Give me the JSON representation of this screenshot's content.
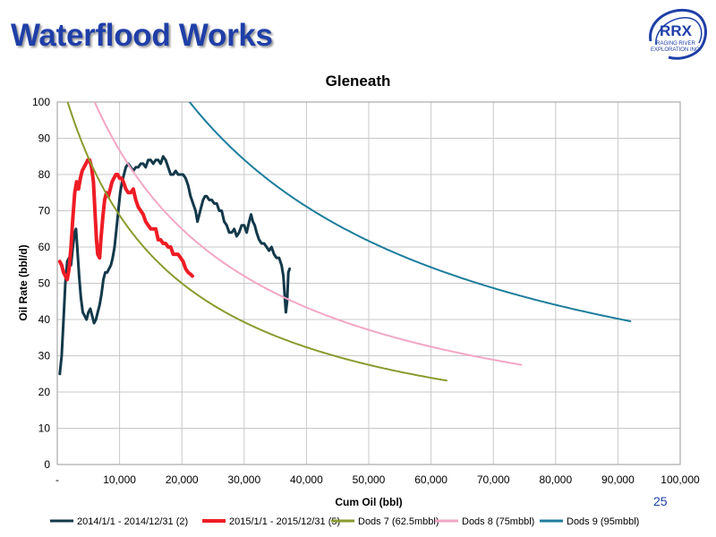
{
  "slide": {
    "title": "Waterflood Works",
    "page_number": "25"
  },
  "logo": {
    "name": "RRX",
    "subtitle_line1": "RAGING RIVER",
    "subtitle_line2": "EXPLORATION INC."
  },
  "colors": {
    "title": "#1f3fa8",
    "grid": "#c8c8c8",
    "logo": "#1f3fa8"
  },
  "chart_data": {
    "type": "line",
    "title": "Gleneath",
    "xlabel": "Cum Oil (bbl)",
    "ylabel": "Oil Rate (bbl/d)",
    "xlim": [
      0,
      100000
    ],
    "ylim": [
      0,
      100
    ],
    "xticks": [
      0,
      10000,
      20000,
      30000,
      40000,
      50000,
      60000,
      70000,
      80000,
      90000,
      100000
    ],
    "xtick_labels": [
      "-",
      "10,000",
      "20,000",
      "30,000",
      "40,000",
      "50,000",
      "60,000",
      "70,000",
      "80,000",
      "90,000",
      "100,000"
    ],
    "yticks": [
      0,
      10,
      20,
      30,
      40,
      50,
      60,
      70,
      80,
      90,
      100
    ],
    "ytick_labels": [
      "0",
      "10",
      "20",
      "30",
      "40",
      "50",
      "60",
      "70",
      "80",
      "90",
      "100"
    ],
    "grid": true,
    "legend_position": "bottom",
    "series": [
      {
        "name": "2014/1/1 - 2014/12/31 (2)",
        "color": "#13394a",
        "width": 3,
        "points": [
          [
            400,
            25
          ],
          [
            700,
            30
          ],
          [
            1000,
            40
          ],
          [
            1300,
            50
          ],
          [
            1600,
            56
          ],
          [
            1900,
            57
          ],
          [
            2200,
            55
          ],
          [
            2500,
            60
          ],
          [
            2800,
            64
          ],
          [
            3000,
            65
          ],
          [
            3200,
            60
          ],
          [
            3500,
            52
          ],
          [
            3800,
            46
          ],
          [
            4100,
            42
          ],
          [
            4400,
            41
          ],
          [
            4700,
            40
          ],
          [
            5000,
            42
          ],
          [
            5300,
            43
          ],
          [
            5600,
            41
          ],
          [
            5900,
            39
          ],
          [
            6200,
            40
          ],
          [
            6500,
            42
          ],
          [
            6800,
            44
          ],
          [
            7100,
            47
          ],
          [
            7400,
            51
          ],
          [
            7700,
            53
          ],
          [
            8000,
            53
          ],
          [
            8300,
            54
          ],
          [
            8600,
            55
          ],
          [
            8900,
            57
          ],
          [
            9200,
            60
          ],
          [
            9500,
            65
          ],
          [
            9800,
            70
          ],
          [
            10100,
            75
          ],
          [
            10400,
            78
          ],
          [
            10700,
            80
          ],
          [
            11000,
            82
          ],
          [
            11400,
            83
          ],
          [
            11800,
            82
          ],
          [
            12200,
            81
          ],
          [
            12600,
            82
          ],
          [
            13000,
            82
          ],
          [
            13400,
            83
          ],
          [
            13800,
            83
          ],
          [
            14200,
            82
          ],
          [
            14600,
            84
          ],
          [
            15000,
            84
          ],
          [
            15400,
            83
          ],
          [
            15800,
            84
          ],
          [
            16200,
            84
          ],
          [
            16600,
            83
          ],
          [
            17000,
            85
          ],
          [
            17400,
            84
          ],
          [
            17800,
            82
          ],
          [
            18200,
            80
          ],
          [
            18600,
            80
          ],
          [
            19000,
            81
          ],
          [
            19400,
            80
          ],
          [
            19800,
            80
          ],
          [
            20200,
            80
          ],
          [
            20600,
            79
          ],
          [
            21000,
            77
          ],
          [
            21400,
            74
          ],
          [
            21800,
            72
          ],
          [
            22200,
            70
          ],
          [
            22500,
            67
          ],
          [
            22800,
            69
          ],
          [
            23100,
            71
          ],
          [
            23400,
            73
          ],
          [
            23700,
            74
          ],
          [
            24000,
            74
          ],
          [
            24400,
            73
          ],
          [
            24800,
            73
          ],
          [
            25200,
            72
          ],
          [
            25600,
            72
          ],
          [
            26000,
            70
          ],
          [
            26400,
            70
          ],
          [
            26800,
            67
          ],
          [
            27200,
            66
          ],
          [
            27600,
            64
          ],
          [
            28000,
            64
          ],
          [
            28400,
            65
          ],
          [
            28800,
            63
          ],
          [
            29200,
            64
          ],
          [
            29600,
            66
          ],
          [
            30000,
            66
          ],
          [
            30400,
            64
          ],
          [
            30800,
            67
          ],
          [
            31100,
            69
          ],
          [
            31400,
            67
          ],
          [
            31700,
            66
          ],
          [
            32000,
            64
          ],
          [
            32400,
            62
          ],
          [
            32800,
            61
          ],
          [
            33200,
            61
          ],
          [
            33600,
            60
          ],
          [
            34000,
            59
          ],
          [
            34400,
            60
          ],
          [
            34800,
            58
          ],
          [
            35200,
            57
          ],
          [
            35600,
            57
          ],
          [
            36000,
            55
          ],
          [
            36300,
            52
          ],
          [
            36500,
            47
          ],
          [
            36700,
            42
          ],
          [
            36900,
            45
          ],
          [
            37100,
            53
          ],
          [
            37300,
            54
          ]
        ]
      },
      {
        "name": "2015/1/1 - 2015/12/31 (5)",
        "color": "#ee1c25",
        "width": 4,
        "points": [
          [
            400,
            56
          ],
          [
            700,
            55
          ],
          [
            1000,
            53
          ],
          [
            1300,
            52
          ],
          [
            1600,
            51
          ],
          [
            1900,
            54
          ],
          [
            2200,
            60
          ],
          [
            2500,
            68
          ],
          [
            2800,
            75
          ],
          [
            3100,
            78
          ],
          [
            3400,
            76
          ],
          [
            3700,
            79
          ],
          [
            4000,
            81
          ],
          [
            4300,
            82
          ],
          [
            4600,
            83
          ],
          [
            4900,
            84
          ],
          [
            5200,
            84
          ],
          [
            5500,
            82
          ],
          [
            5800,
            78
          ],
          [
            6100,
            68
          ],
          [
            6300,
            62
          ],
          [
            6500,
            58
          ],
          [
            6800,
            57
          ],
          [
            7000,
            62
          ],
          [
            7300,
            68
          ],
          [
            7600,
            73
          ],
          [
            7900,
            75
          ],
          [
            8200,
            74
          ],
          [
            8500,
            76
          ],
          [
            8800,
            78
          ],
          [
            9100,
            79
          ],
          [
            9400,
            80
          ],
          [
            9700,
            80
          ],
          [
            10000,
            79
          ],
          [
            10300,
            79
          ],
          [
            10600,
            78
          ],
          [
            11000,
            76
          ],
          [
            11400,
            75
          ],
          [
            11800,
            75
          ],
          [
            12200,
            76
          ],
          [
            12600,
            73
          ],
          [
            13000,
            71
          ],
          [
            13400,
            70
          ],
          [
            13800,
            69
          ],
          [
            14200,
            67
          ],
          [
            14600,
            66
          ],
          [
            15000,
            65
          ],
          [
            15400,
            65
          ],
          [
            15800,
            65
          ],
          [
            16200,
            62
          ],
          [
            16600,
            62
          ],
          [
            17000,
            61
          ],
          [
            17400,
            61
          ],
          [
            17800,
            60
          ],
          [
            18200,
            60
          ],
          [
            18600,
            58
          ],
          [
            19000,
            58
          ],
          [
            19400,
            58
          ],
          [
            19800,
            57
          ],
          [
            20200,
            56
          ],
          [
            20600,
            54
          ],
          [
            21000,
            53
          ],
          [
            21400,
            52.5
          ],
          [
            21700,
            52
          ]
        ]
      },
      {
        "name": "Dods 7 (62.5mbbl)",
        "color": "#8a9a2e",
        "width": 2,
        "qi": 110,
        "d": 6e-05,
        "xrange": [
          0,
          62500
        ]
      },
      {
        "name": "Dods 8 (75mbbl)",
        "color": "#f3a6c6",
        "width": 2,
        "qi": 130,
        "d": 5e-05,
        "xrange": [
          0,
          74500
        ]
      },
      {
        "name": "Dods 9 (95mbbl)",
        "color": "#1c7d9c",
        "width": 2,
        "qi": 185,
        "d": 4e-05,
        "xrange": [
          0,
          92000
        ]
      }
    ]
  }
}
